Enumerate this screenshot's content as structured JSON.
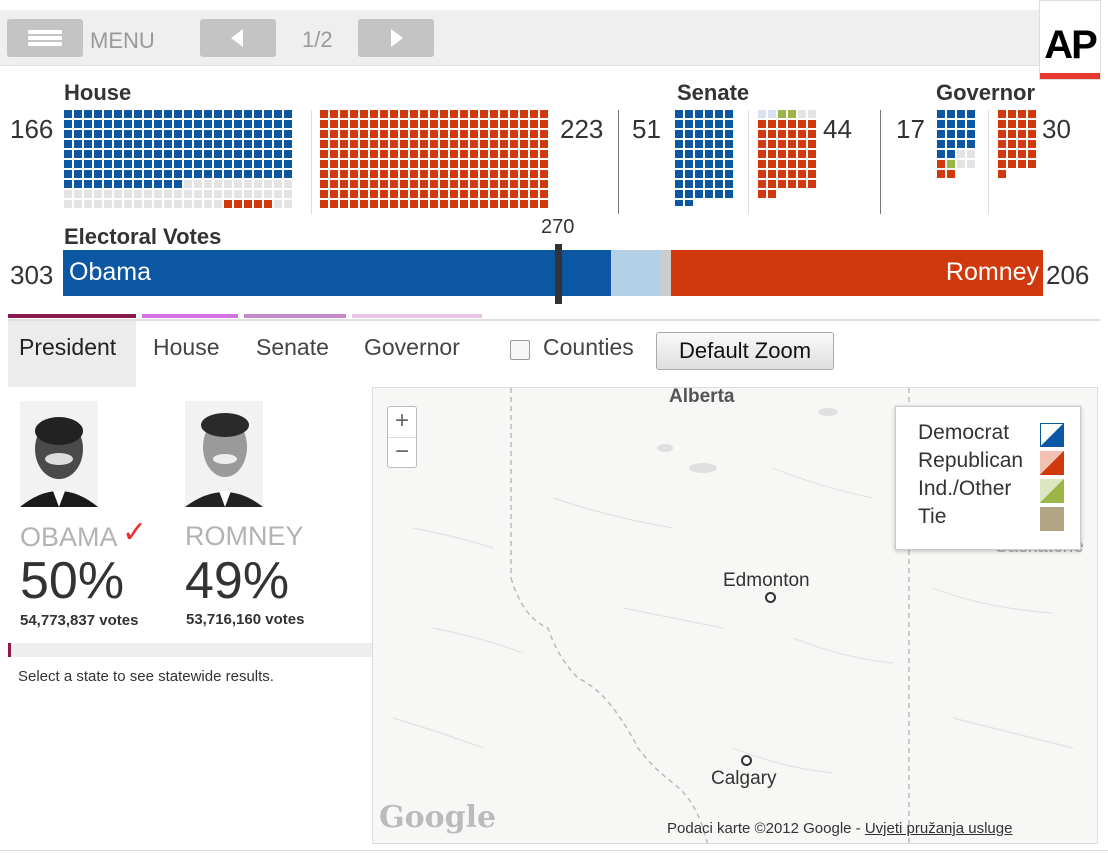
{
  "toolbar": {
    "menu_label": "MENU",
    "pager": "1/2",
    "logo": "AP"
  },
  "house": {
    "title": "House",
    "dem_count": "166",
    "rep_count": "223"
  },
  "senate": {
    "title": "Senate",
    "dem_count": "51",
    "rep_count": "44"
  },
  "governor": {
    "title": "Governor",
    "dem_count": "17",
    "rep_count": "30"
  },
  "electoral": {
    "title": "Electoral Votes",
    "threshold": "270",
    "dem_count": "303",
    "rep_count": "206",
    "dem_name": "Obama",
    "rep_name": "Romney"
  },
  "tabs": [
    {
      "label": "President"
    },
    {
      "label": "House"
    },
    {
      "label": "Senate"
    },
    {
      "label": "Governor"
    }
  ],
  "counties_label": "Counties",
  "zoom_label": "Default Zoom",
  "candidates": {
    "dem": {
      "name": "OBAMA",
      "pct": "50%",
      "votes": "54,773,837 votes"
    },
    "rep": {
      "name": "ROMNEY",
      "pct": "49%",
      "votes": "53,716,160 votes"
    }
  },
  "hint": "Select a state to see statewide results.",
  "map": {
    "region": "Alberta",
    "cities": [
      "Edmonton",
      "Calgary"
    ],
    "partial_label": "Saskatche",
    "google": "Google",
    "terms_prefix": "Podaci karte ©2012 Google - ",
    "terms_link": "Uvjeti pružanja usluge",
    "zoom_in": "+",
    "zoom_out": "−"
  },
  "legend": [
    {
      "label": "Democrat",
      "color": "#0b57a4"
    },
    {
      "label": "Republican",
      "color": "#d0390d"
    },
    {
      "label": "Ind./Other",
      "color": "#9cb547"
    },
    {
      "label": "Tie",
      "color": "#b3a486"
    }
  ],
  "colors": {
    "dem": "#0b57a4",
    "rep": "#d0390d",
    "undecided": "#b3d0e6",
    "tab_accents": [
      "#8b1a4e",
      "#d370e2",
      "#c58ac9",
      "#e7c4e5"
    ]
  }
}
